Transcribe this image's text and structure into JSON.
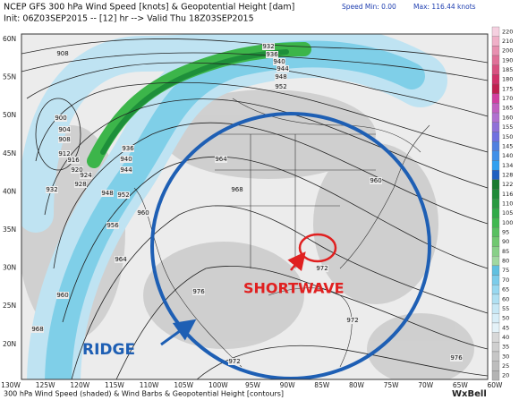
{
  "header": {
    "title": "NCEP GFS 300 hPa Wind Speed [knots] & Geopotential Height [dam]",
    "init": "Init: 06Z03SEP2015 -- [12] hr --> Valid Thu 18Z03SEP2015",
    "speed_min": "Speed Min:  0.00",
    "speed_max": "Max: 116.44 knots"
  },
  "map": {
    "latitudes": [
      "60N",
      "55N",
      "50N",
      "45N",
      "40N",
      "35N",
      "30N",
      "25N",
      "20N"
    ],
    "longitudes": [
      "130W",
      "125W",
      "120W",
      "115W",
      "110W",
      "105W",
      "100W",
      "95W",
      "90W",
      "85W",
      "80W",
      "75W",
      "70W",
      "65W",
      "60W"
    ],
    "contour_labels": [
      "932",
      "936",
      "940",
      "944",
      "948",
      "952",
      "908",
      "900",
      "904",
      "908",
      "912",
      "916",
      "920",
      "924",
      "928",
      "932",
      "936",
      "940",
      "944",
      "948",
      "952",
      "956",
      "960",
      "964",
      "968",
      "960",
      "964",
      "960",
      "972",
      "976",
      "972",
      "968",
      "972",
      "976"
    ],
    "annotations": [
      "RIDGE",
      "SHORTWAVE"
    ]
  },
  "colorbar": {
    "labels": [
      "220",
      "210",
      "200",
      "190",
      "185",
      "180",
      "175",
      "170",
      "165",
      "160",
      "155",
      "150",
      "145",
      "140",
      "134",
      "128",
      "122",
      "116",
      "110",
      "105",
      "100",
      "95",
      "90",
      "85",
      "80",
      "75",
      "70",
      "65",
      "60",
      "55",
      "50",
      "45",
      "40",
      "35",
      "30",
      "25",
      "20"
    ]
  },
  "footer": {
    "caption": "300 hPa Wind Speed (shaded) & Wind Barbs & Geopotential Height [contours]",
    "brand": "WxBell"
  }
}
